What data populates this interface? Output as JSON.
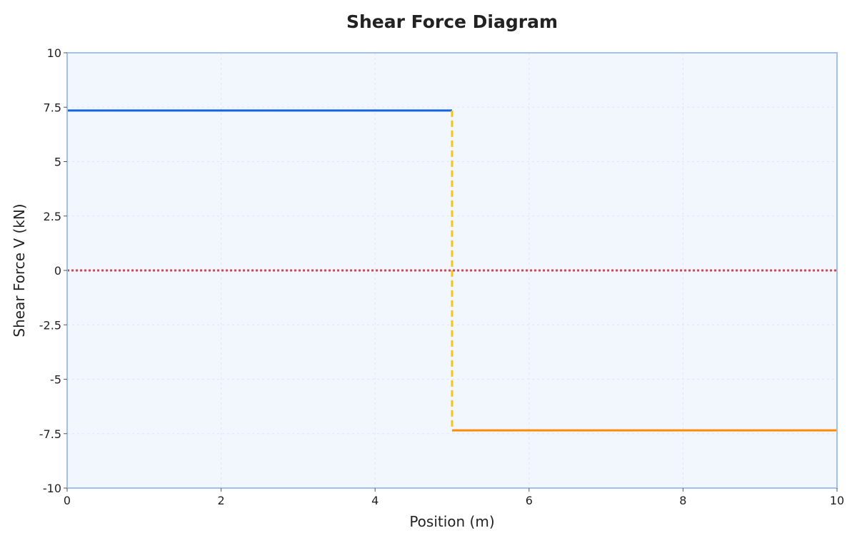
{
  "chart_data": {
    "type": "line",
    "title": "Shear Force Diagram",
    "xlabel": "Position (m)",
    "ylabel": "Shear Force V (kN)",
    "xlim": [
      0,
      10
    ],
    "ylim": [
      -10,
      10
    ],
    "x_ticks": [
      0,
      2,
      4,
      6,
      8,
      10
    ],
    "x_tick_labels": [
      "0",
      "2",
      "4",
      "6",
      "8",
      "10"
    ],
    "y_ticks": [
      -10,
      -7.5,
      -5,
      -2.5,
      0,
      2.5,
      5,
      7.5,
      10
    ],
    "y_tick_labels": [
      "-10",
      "-7.5",
      "-5",
      "-2.5",
      "0",
      "2.5",
      "5",
      "7.5",
      "10"
    ],
    "grid": true,
    "background": "#f2f7fe",
    "frame_color": "#a0c0f0",
    "grid_color": "#dde6f2",
    "series": [
      {
        "x": [
          0,
          5
        ],
        "y": [
          7.35,
          7.35
        ],
        "color": "#1565d8",
        "style": "solid"
      },
      {
        "x": [
          5,
          10
        ],
        "y": [
          -7.35,
          -7.35
        ],
        "color": "#ff8c00",
        "style": "solid"
      },
      {
        "x": [
          5,
          5
        ],
        "y": [
          7.35,
          -7.35
        ],
        "color": "#f5c518",
        "style": "dashed"
      },
      {
        "x": [
          0,
          10
        ],
        "y": [
          0,
          0
        ],
        "color": "#c0505c",
        "style": "dotted"
      }
    ]
  }
}
